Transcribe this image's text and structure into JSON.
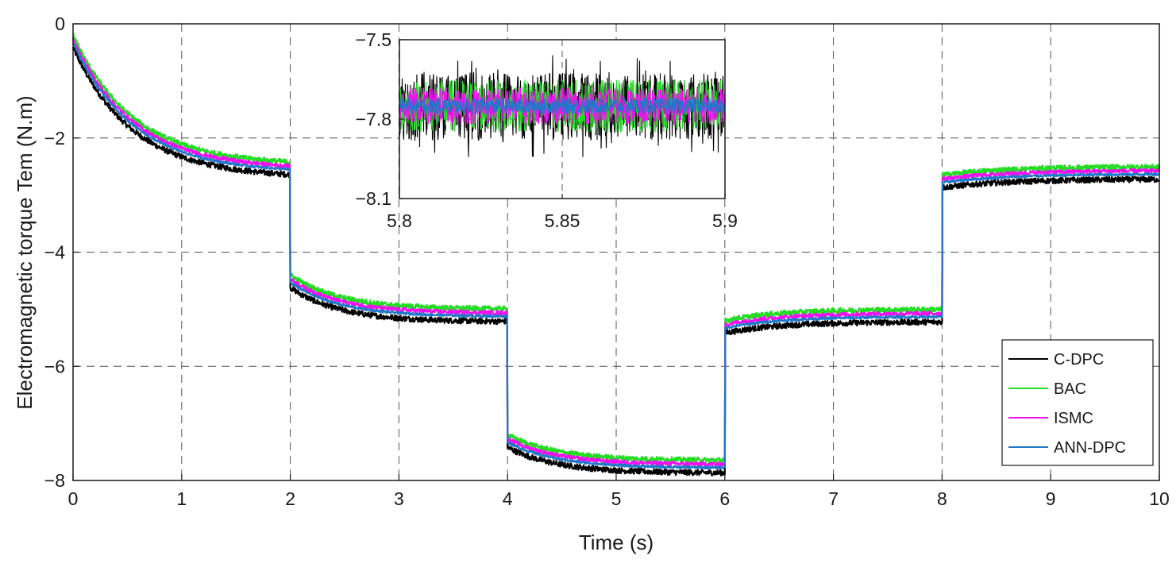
{
  "chart_data": [
    {
      "id": "main",
      "type": "line",
      "xlabel": "Time (s)",
      "ylabel": "Electromagnetic torque Tem (N.m)",
      "xlim": [
        0,
        10
      ],
      "ylim": [
        -8,
        0
      ],
      "xticks": [
        0,
        1,
        2,
        3,
        4,
        5,
        6,
        7,
        8,
        9,
        10
      ],
      "xtick_labels": [
        "0",
        "1",
        "2",
        "3",
        "4",
        "5",
        "6",
        "7",
        "8",
        "9",
        "10"
      ],
      "yticks": [
        0,
        -2,
        -4,
        -6,
        -8
      ],
      "ytick_labels": [
        "0",
        "−2",
        "−4",
        "−6",
        "−8"
      ],
      "grid": true,
      "legend_position": "bottom-right",
      "series": [
        {
          "name": "C-DPC",
          "color": "#000000",
          "offset": -0.12,
          "noise": 0.05
        },
        {
          "name": "BAC",
          "color": "#22dd22",
          "offset": 0.1,
          "noise": 0.045
        },
        {
          "name": "ISMC",
          "color": "#ee11ee",
          "offset": 0.03,
          "noise": 0.035
        },
        {
          "name": "ANN-DPC",
          "color": "#1f78c8",
          "offset": -0.03,
          "noise": 0.02
        }
      ],
      "reference_steps": [
        {
          "t0": 0,
          "t1": 2,
          "start": -0.3,
          "final": -2.58,
          "tau": 0.55
        },
        {
          "t0": 2,
          "t1": 4,
          "start": -4.5,
          "final": -5.1,
          "tau": 0.45
        },
        {
          "t0": 4,
          "t1": 6,
          "start": -7.3,
          "final": -7.75,
          "tau": 0.45
        },
        {
          "t0": 6,
          "t1": 8,
          "start": -5.3,
          "final": -5.1,
          "tau": 0.5
        },
        {
          "t0": 8,
          "t1": 10,
          "start": -2.75,
          "final": -2.6,
          "tau": 0.6
        }
      ]
    },
    {
      "id": "inset",
      "type": "line",
      "xlim": [
        5.8,
        5.9
      ],
      "ylim": [
        -8.1,
        -7.5
      ],
      "xticks": [
        5.8,
        5.85,
        5.9
      ],
      "xtick_labels": [
        "5.8",
        "5.85",
        "5.9"
      ],
      "yticks": [
        -7.5,
        -7.8,
        -8.1
      ],
      "ytick_labels": [
        "−7.5",
        "−7.8",
        "−8.1"
      ],
      "grid": true,
      "band_center": -7.75,
      "band_half_widths": [
        {
          "name": "C-DPC",
          "color": "#000000",
          "half_width": 0.13
        },
        {
          "name": "BAC",
          "color": "#22dd22",
          "half_width": 0.1
        },
        {
          "name": "ISMC",
          "color": "#ee11ee",
          "half_width": 0.07
        },
        {
          "name": "ANN-DPC",
          "color": "#1f78c8",
          "half_width": 0.03
        }
      ]
    }
  ]
}
